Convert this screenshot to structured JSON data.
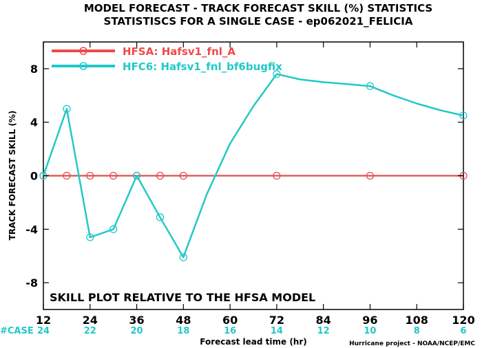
{
  "title_line1": "MODEL FORECAST - TRACK FORECAST SKILL (%) STATISTICS",
  "title_line2": "STATISTISCS FOR A SINGLE CASE - ep062021_FELICIA",
  "footer_credit": "Hurricane project - NOAA/NCEP/EMC",
  "case_label": "#CASE",
  "colors": {
    "hfsa": "#f04848",
    "hfc6": "#22c8c8",
    "zero_line": "#880000",
    "axis": "#000000"
  },
  "chart_data": {
    "type": "line",
    "title": "MODEL FORECAST - TRACK FORECAST SKILL (%) STATISTICS",
    "subtitle": "STATISTISCS FOR A SINGLE CASE - ep062021_FELICIA",
    "xlabel": "Forecast lead time (hr)",
    "ylabel": "TRACK FORECAST SKILL (%)",
    "xlim": [
      12,
      120
    ],
    "ylim": [
      -10,
      10
    ],
    "xticks": [
      12,
      24,
      36,
      48,
      60,
      72,
      84,
      96,
      108,
      120
    ],
    "xtick_labels": [
      "12",
      "24",
      "36",
      "48",
      "60",
      "72",
      "84",
      "96",
      "108",
      "120"
    ],
    "yticks": [
      -8,
      -4,
      0,
      4,
      8
    ],
    "ytick_labels": [
      "-8",
      "-4",
      "0",
      "4",
      "8"
    ],
    "case_counts": [
      "24",
      "22",
      "20",
      "18",
      "16",
      "14",
      "12",
      "10",
      "8",
      "6"
    ],
    "annotation": "SKILL PLOT RELATIVE TO THE HFSA MODEL",
    "legend_position": "top-left",
    "grid": false,
    "series": [
      {
        "name": "HFSA: Hafsv1_fnl_A",
        "color": "#f04848",
        "x": [
          12,
          18,
          24,
          30,
          36,
          42,
          48,
          72,
          96,
          120
        ],
        "y": [
          0,
          0,
          0,
          0,
          0,
          0,
          0,
          0,
          0,
          0
        ]
      },
      {
        "name": "HFC6: Hafsv1_fnl_bf6bugfix",
        "color": "#22c8c8",
        "x": [
          12,
          18,
          24,
          30,
          36,
          42,
          48,
          54,
          60,
          66,
          72,
          78,
          84,
          90,
          96,
          102,
          108,
          114,
          120
        ],
        "y": [
          0,
          5.0,
          -4.6,
          -4.0,
          0,
          -3.1,
          -6.1,
          -1.4,
          2.4,
          5.2,
          7.6,
          7.2,
          7.0,
          6.85,
          6.7,
          6.0,
          5.4,
          4.9,
          4.5
        ],
        "markers_x": [
          12,
          18,
          24,
          30,
          36,
          42,
          48,
          72,
          96,
          120
        ]
      }
    ]
  }
}
